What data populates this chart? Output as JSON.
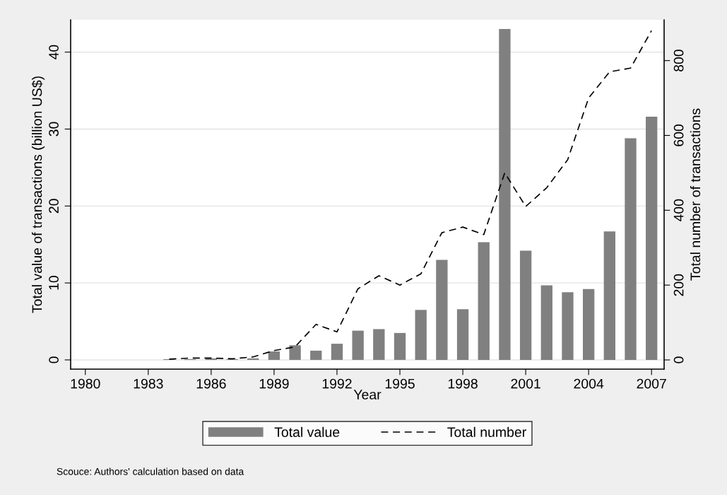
{
  "chart_data": {
    "type": "bar",
    "xlabel": "Year",
    "ylabel": "Total value of transactions (billion US$)",
    "y2label": "Total number of transactions",
    "x": [
      1984,
      1985,
      1986,
      1987,
      1988,
      1989,
      1990,
      1991,
      1992,
      1993,
      1994,
      1995,
      1996,
      1997,
      1998,
      1999,
      2000,
      2001,
      2002,
      2003,
      2004,
      2005,
      2006,
      2007
    ],
    "series": [
      {
        "name": "Total value",
        "color": "#808080",
        "values": [
          0.1,
          0.1,
          0.2,
          0.1,
          0.2,
          1.1,
          1.9,
          1.2,
          2.1,
          3.8,
          4.0,
          3.5,
          6.5,
          13.0,
          6.6,
          15.3,
          43.0,
          14.2,
          9.7,
          8.8,
          9.2,
          16.7,
          28.8,
          31.6
        ]
      },
      {
        "name": "Total number",
        "type": "line",
        "axis": "y2",
        "color": "#000000",
        "line_style": "dashed",
        "values": [
          2,
          5,
          5,
          3,
          8,
          25,
          35,
          95,
          75,
          190,
          225,
          200,
          230,
          340,
          355,
          335,
          500,
          410,
          460,
          535,
          700,
          770,
          780,
          880
        ]
      }
    ],
    "xlim": [
      1979.3,
      2007.6
    ],
    "xticks": [
      1980,
      1983,
      1986,
      1989,
      1992,
      1995,
      1998,
      2001,
      2004,
      2007
    ],
    "ylim": [
      -1.2,
      44.2
    ],
    "yticks": [
      0,
      10,
      20,
      30,
      40
    ],
    "y2lim": [
      -24.6,
      909
    ],
    "y2ticks": [
      0,
      200,
      400,
      600,
      800
    ],
    "grid": "y",
    "legend": "bottom",
    "annotations": [
      "Scouce: Authors' calculation based on data"
    ]
  }
}
